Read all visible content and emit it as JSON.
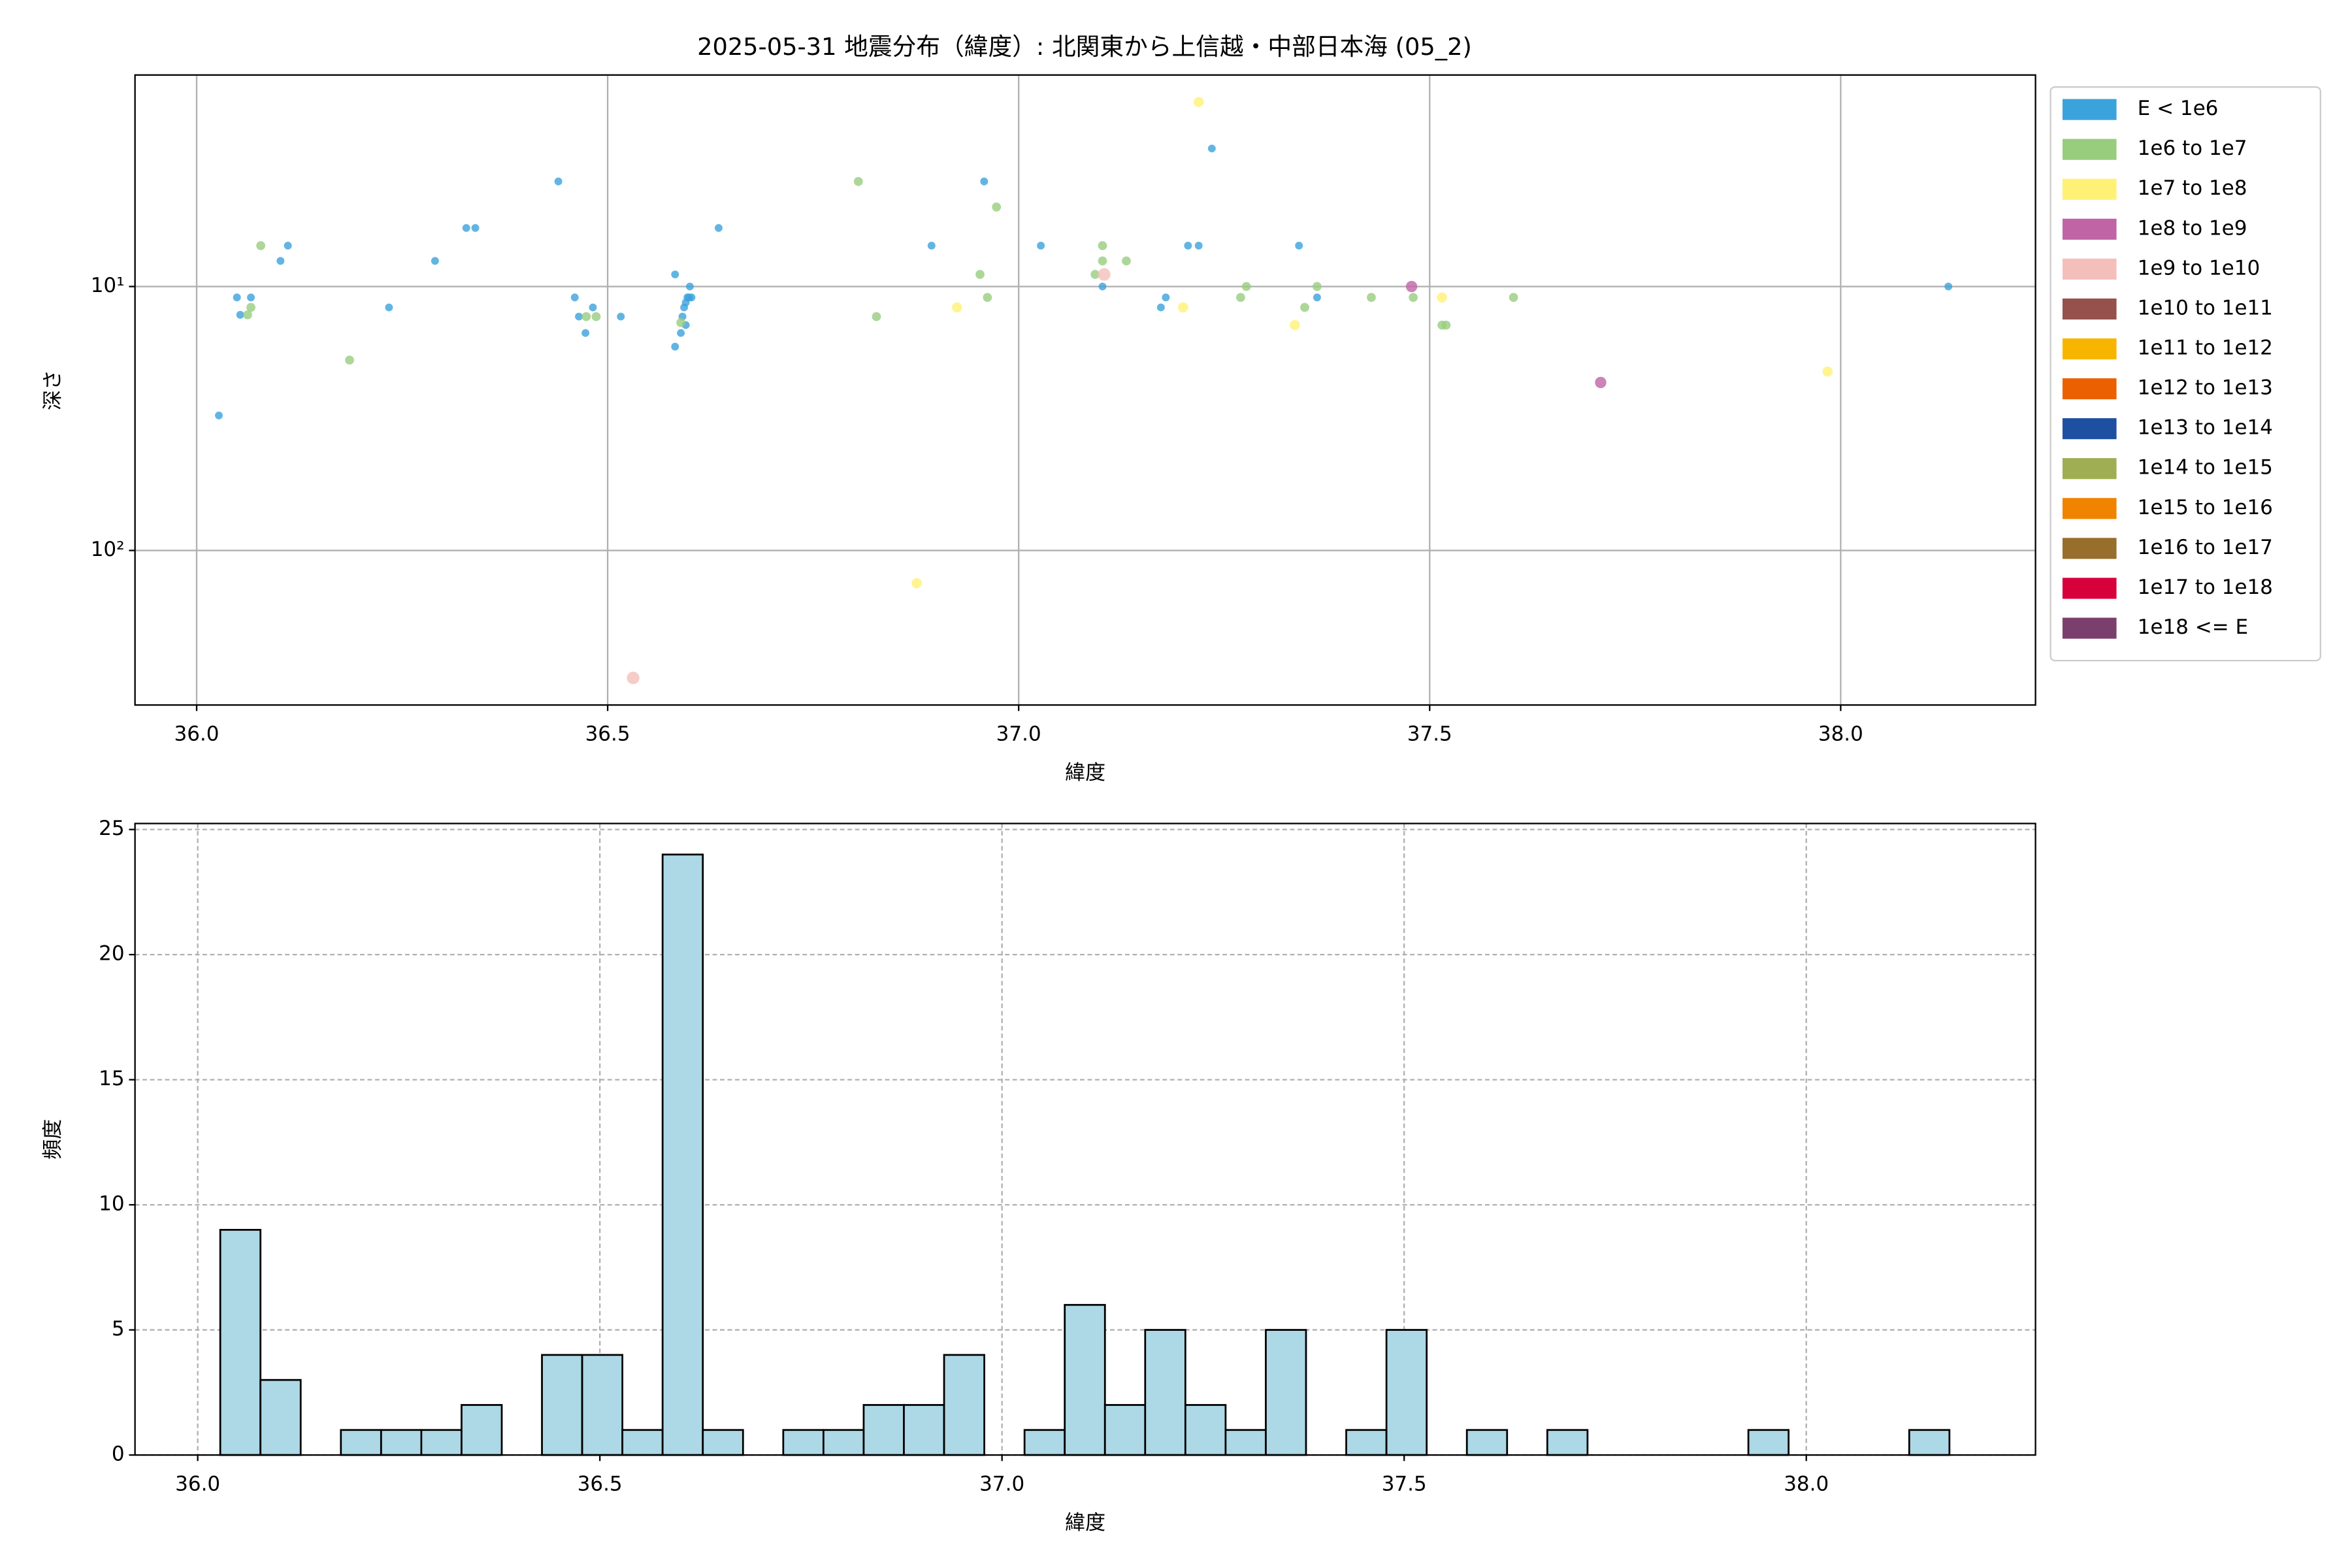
{
  "chart_data": [
    {
      "type": "scatter",
      "title": "2025-05-31 地震分布（緯度）: 北関東から上信越・中部日本海 (05_2)",
      "x_label": "緯度",
      "y_label": "深さ",
      "xlim": [
        35.925,
        38.237
      ],
      "xticks": [
        {
          "value": 36,
          "label": "36.0"
        },
        {
          "value": 36.5,
          "label": "36.5"
        },
        {
          "value": 37,
          "label": "37.0"
        },
        {
          "value": 37.5,
          "label": "37.5"
        },
        {
          "value": 38,
          "label": "38.0"
        }
      ],
      "ylim": [
        1.58,
        385
      ],
      "yscale": "log",
      "y_inverted": true,
      "yticks": [
        {
          "value": 10,
          "label": "10¹"
        },
        {
          "value": 100,
          "label": "10²"
        }
      ],
      "grid": true,
      "grid_linestyle": "solid",
      "legend": "outside right",
      "series": [
        {
          "name": "E < 1e6",
          "color": "#3ba3dc",
          "x": [
            36.027,
            36.049,
            36.053,
            36.066,
            36.102,
            36.111,
            36.234,
            36.29,
            36.328,
            36.339,
            36.44,
            36.46,
            36.465,
            36.473,
            36.482,
            36.516,
            36.582,
            36.582,
            36.589,
            36.591,
            36.593,
            36.595,
            36.597,
            36.599,
            36.6,
            36.602,
            36.595,
            36.635,
            36.894,
            36.958,
            37.027,
            37.102,
            37.173,
            37.179,
            37.206,
            37.219,
            37.235,
            37.341,
            37.363,
            38.131
          ],
          "values": [
            30.8,
            11,
            12.8,
            11,
            8,
            7,
            12,
            8,
            6,
            6,
            4,
            11,
            13,
            15,
            12,
            13,
            9,
            16.9,
            15,
            13,
            12,
            11.5,
            11,
            11,
            10,
            11,
            14,
            6,
            7,
            4,
            7,
            10,
            12,
            11,
            7,
            7,
            3,
            7,
            11,
            10
          ]
        },
        {
          "name": "1e6 to 1e7",
          "color": "#98cd7e",
          "x": [
            36.078,
            36.062,
            36.066,
            36.186,
            36.474,
            36.486,
            36.589,
            36.805,
            36.827,
            36.953,
            36.962,
            36.973,
            37.093,
            37.102,
            37.102,
            37.131,
            37.27,
            37.277,
            37.348,
            37.363,
            37.429,
            37.48,
            37.515,
            37.52,
            37.602
          ],
          "values": [
            7,
            12.8,
            12,
            19,
            13,
            13,
            13.7,
            4,
            13,
            9,
            11,
            5,
            9,
            7,
            8,
            8,
            11,
            10,
            12,
            10,
            11,
            11,
            14,
            14,
            11
          ]
        },
        {
          "name": "1e7 to 1e8",
          "color": "#fff176",
          "x": [
            37.219,
            36.925,
            37.2,
            37.336,
            37.515,
            36.876,
            37.984
          ],
          "values": [
            2,
            12,
            12,
            14,
            11,
            133,
            21
          ]
        },
        {
          "name": "1e8 to 1e9",
          "color": "#c064a6",
          "x": [
            37.478,
            37.708
          ],
          "values": [
            10,
            23.1
          ]
        },
        {
          "name": "1e9 to 1e10",
          "color": "#f4bfbb",
          "x": [
            37.104,
            36.531
          ],
          "values": [
            9,
            304
          ]
        },
        {
          "name": "1e10 to 1e11",
          "color": "#96514d",
          "x": [],
          "values": []
        },
        {
          "name": "1e11 to 1e12",
          "color": "#f8b500",
          "x": [],
          "values": []
        },
        {
          "name": "1e12 to 1e13",
          "color": "#eb6101",
          "x": [],
          "values": []
        },
        {
          "name": "1e13 to 1e14",
          "color": "#1e50a2",
          "x": [],
          "values": []
        },
        {
          "name": "1e14 to 1e15",
          "color": "#9fae52",
          "x": [],
          "values": []
        },
        {
          "name": "1e15 to 1e16",
          "color": "#f08300",
          "x": [],
          "values": []
        },
        {
          "name": "1e16 to 1e17",
          "color": "#976e2b",
          "x": [],
          "values": []
        },
        {
          "name": "1e17 to 1e18",
          "color": "#d7003a",
          "x": [],
          "values": []
        },
        {
          "name": "1e18 <= E",
          "color": "#7b3f6e",
          "x": [],
          "values": []
        }
      ]
    },
    {
      "type": "histogram",
      "x_label": "緯度",
      "y_label": "頻度",
      "color": "#add8e6",
      "edgecolor": "#000000",
      "xlim": [
        35.922,
        38.285
      ],
      "xticks": [
        {
          "value": 36,
          "label": "36.0"
        },
        {
          "value": 36.5,
          "label": "36.5"
        },
        {
          "value": 37,
          "label": "37.0"
        },
        {
          "value": 37.5,
          "label": "37.5"
        },
        {
          "value": 38,
          "label": "38.0"
        }
      ],
      "ylim": [
        0,
        25.24
      ],
      "yticks": [
        0,
        5,
        10,
        15,
        20,
        25
      ],
      "grid": true,
      "grid_linestyle": "dashed",
      "bins": [
        36.028,
        36.078,
        36.128,
        36.178,
        36.228,
        36.278,
        36.328,
        36.378,
        36.428,
        36.478,
        36.528,
        36.578,
        36.628,
        36.678,
        36.728,
        36.778,
        36.828,
        36.878,
        36.928,
        36.978,
        37.028,
        37.078,
        37.128,
        37.178,
        37.228,
        37.278,
        37.328,
        37.378,
        37.428,
        37.478,
        37.528,
        37.578,
        37.628,
        37.678,
        37.728,
        37.778,
        37.828,
        37.878,
        37.928,
        37.978,
        38.028,
        38.078,
        38.128,
        38.178
      ],
      "counts": [
        9,
        3,
        0,
        1,
        1,
        1,
        2,
        0,
        4,
        4,
        1,
        24,
        1,
        0,
        1,
        1,
        2,
        2,
        4,
        0,
        1,
        6,
        2,
        5,
        2,
        1,
        5,
        0,
        1,
        5,
        0,
        1,
        0,
        1,
        0,
        0,
        0,
        0,
        1,
        0,
        0,
        0,
        1
      ]
    }
  ]
}
